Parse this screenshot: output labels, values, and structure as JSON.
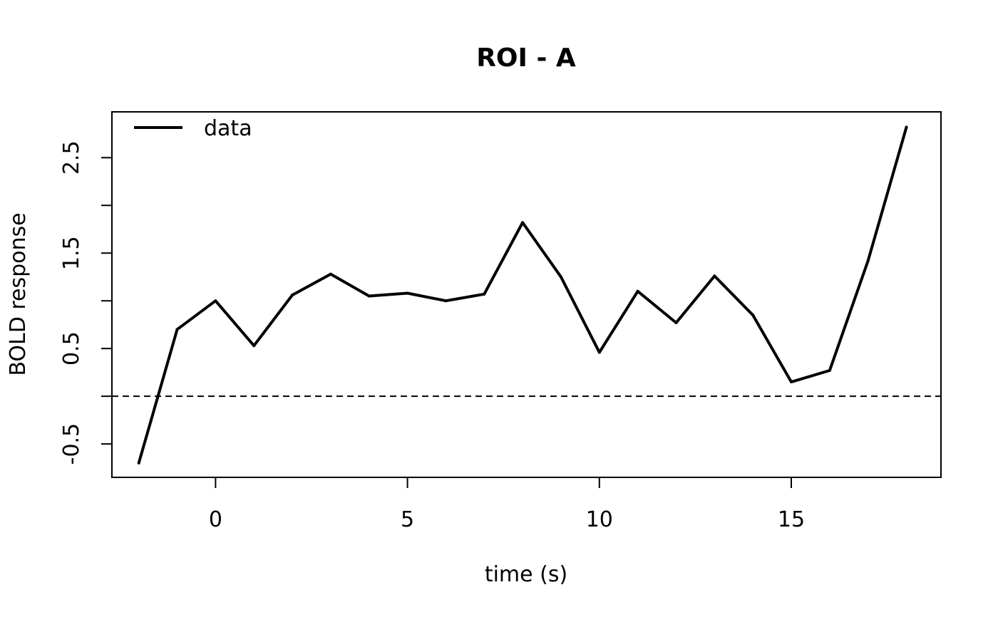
{
  "chart_data": {
    "type": "line",
    "title": "ROI - A",
    "xlabel": "time (s)",
    "ylabel": "BOLD response",
    "xlim": [
      -2.7,
      18.9
    ],
    "ylim": [
      -0.85,
      2.98
    ],
    "xticks": [
      0,
      5,
      10,
      15
    ],
    "xtick_labels": [
      "0",
      "5",
      "10",
      "15"
    ],
    "yticks": [
      -0.5,
      0,
      0.5,
      1,
      1.5,
      2,
      2.5
    ],
    "ytick_labels": [
      "-0.5",
      "",
      "0.5",
      "",
      "1.5",
      "",
      "2.5"
    ],
    "reference_line": {
      "y": 0,
      "style": "dashed"
    },
    "legend": {
      "position": "top-left"
    },
    "grid": false,
    "colors": {
      "line": "#000000",
      "axes": "#000000"
    },
    "series": [
      {
        "name": "data",
        "x": [
          -2,
          -1,
          0,
          1,
          2,
          3,
          4,
          5,
          6,
          7,
          8,
          9,
          10,
          11,
          12,
          13,
          14,
          15,
          16,
          17,
          18
        ],
        "y": [
          -0.7,
          0.7,
          1.0,
          0.53,
          1.06,
          1.28,
          1.05,
          1.08,
          1.0,
          1.07,
          1.82,
          1.25,
          0.46,
          1.1,
          0.77,
          1.26,
          0.85,
          0.15,
          0.27,
          1.42,
          2.82
        ]
      }
    ]
  }
}
